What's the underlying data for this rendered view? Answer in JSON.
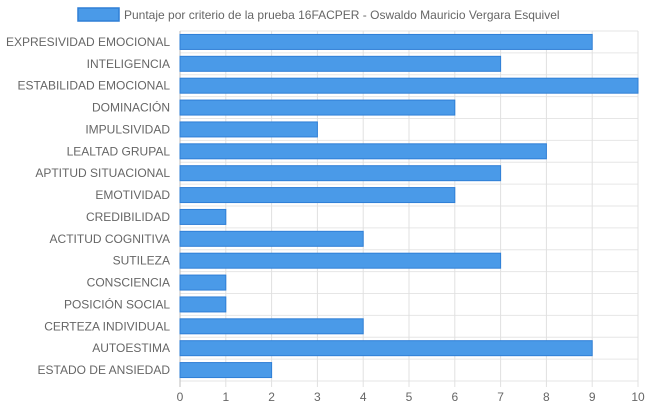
{
  "colors": {
    "bar_fill": "#4a9ae8",
    "bar_stroke": "#2f7fd6"
  },
  "chart_data": {
    "type": "bar",
    "orientation": "horizontal",
    "legend_position": "top",
    "grid": true,
    "series": [
      {
        "name": "Puntaje por criterio de la prueba 16FACPER - Oswaldo Mauricio Vergara Esquivel",
        "values": [
          9,
          7,
          10,
          6,
          3,
          8,
          7,
          6,
          1,
          4,
          7,
          1,
          1,
          4,
          9,
          2
        ]
      }
    ],
    "categories": [
      "EXPRESIVIDAD EMOCIONAL",
      "INTELIGENCIA",
      "ESTABILIDAD EMOCIONAL",
      "DOMINACIÓN",
      "IMPULSIVIDAD",
      "LEALTAD GRUPAL",
      "APTITUD SITUACIONAL",
      "EMOTIVIDAD",
      "CREDIBILIDAD",
      "ACTITUD COGNITIVA",
      "SUTILEZA",
      "CONSCIENCIA",
      "POSICIÓN SOCIAL",
      "CERTEZA INDIVIDUAL",
      "AUTOESTIMA",
      "ESTADO DE ANSIEDAD"
    ],
    "xlim": [
      0,
      10
    ],
    "x_ticks": [
      "0",
      "1",
      "2",
      "3",
      "4",
      "5",
      "6",
      "7",
      "8",
      "9",
      "10"
    ]
  }
}
